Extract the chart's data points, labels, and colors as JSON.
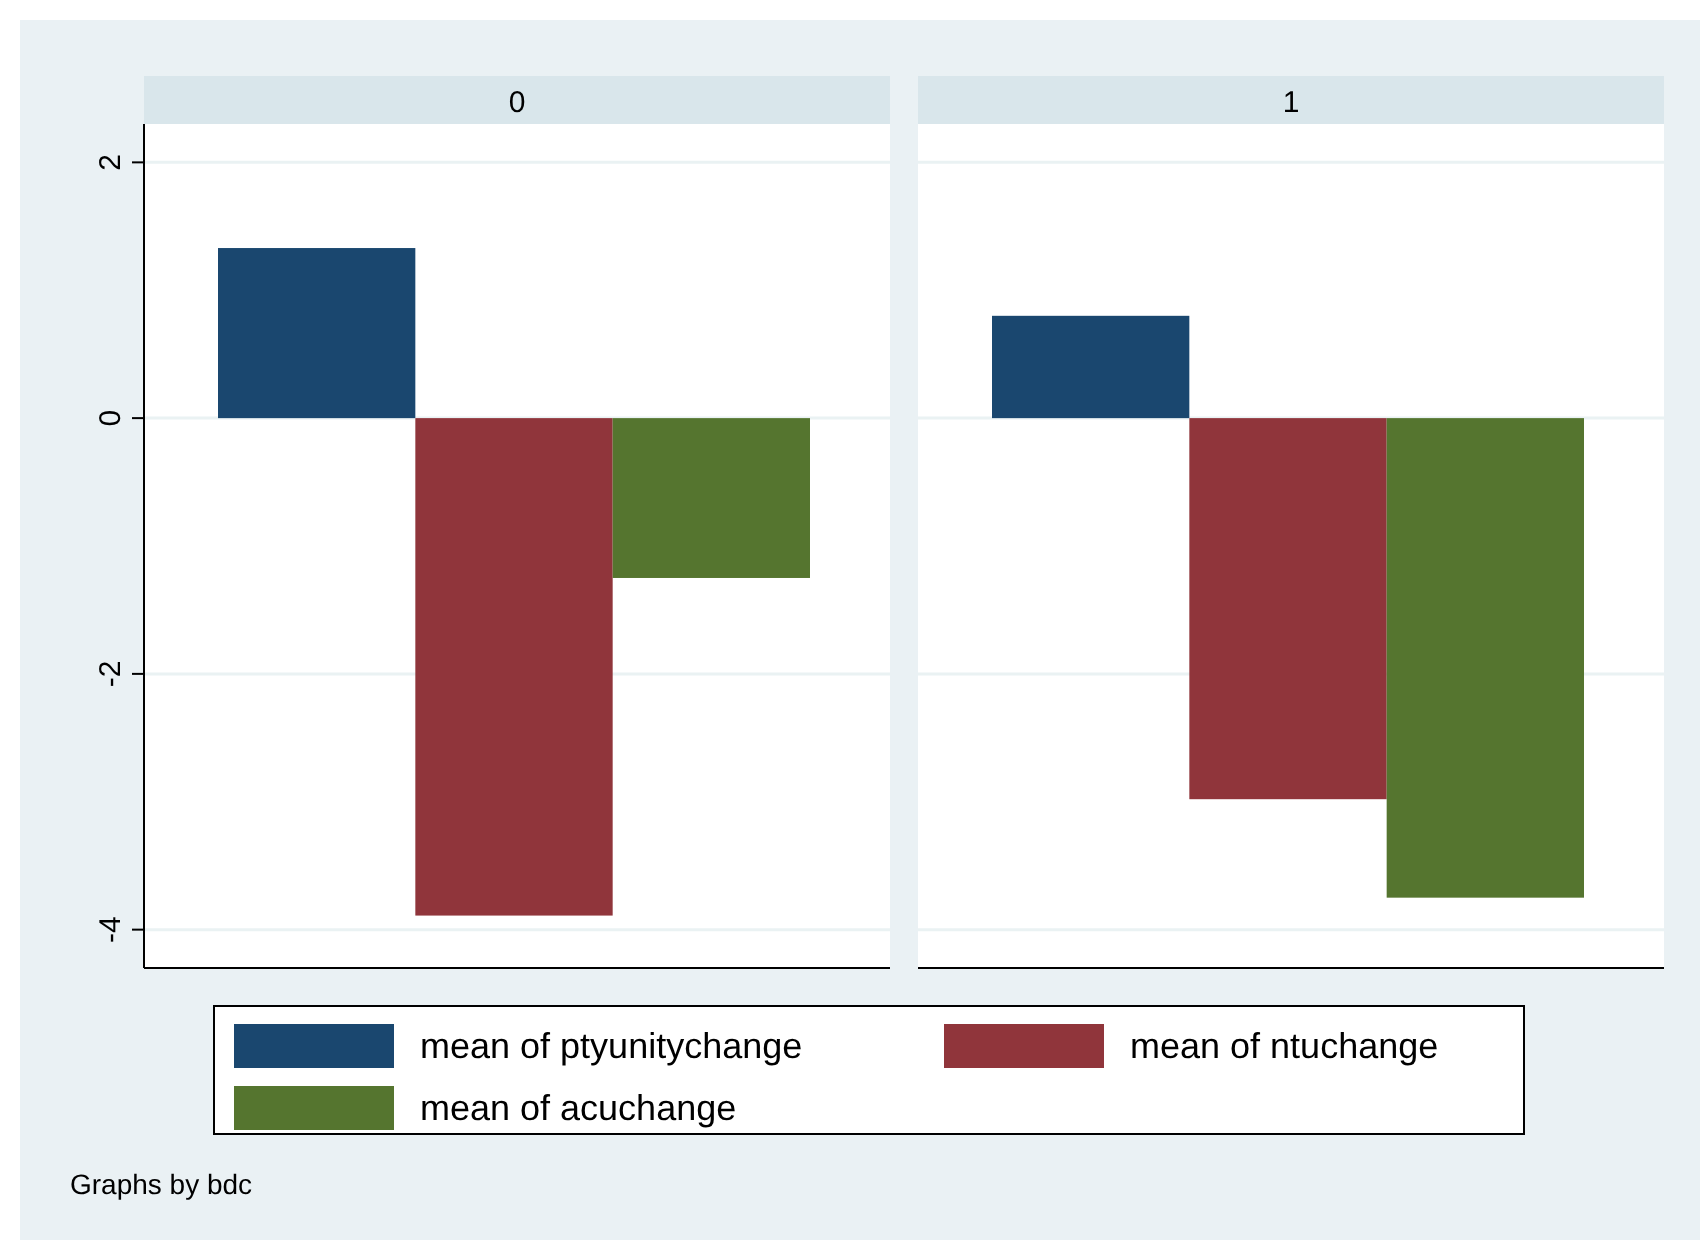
{
  "chart_data": {
    "type": "bar",
    "categories": [
      "0",
      "1"
    ],
    "series": [
      {
        "name": "mean of ptyunitychange",
        "color": "#1a476f",
        "values": [
          1.33,
          0.8
        ]
      },
      {
        "name": "mean of ntuchange",
        "color": "#90353b",
        "values": [
          -3.89,
          -2.98
        ]
      },
      {
        "name": "mean of acuchange",
        "color": "#55752f",
        "values": [
          -1.25,
          -3.75
        ]
      }
    ],
    "ylim": [
      -4.3,
      2.3
    ],
    "yticks": [
      -4,
      -2,
      0,
      2
    ],
    "grid": "y",
    "legend": "bottom",
    "annotations": [
      "Graphs by bdc"
    ]
  }
}
